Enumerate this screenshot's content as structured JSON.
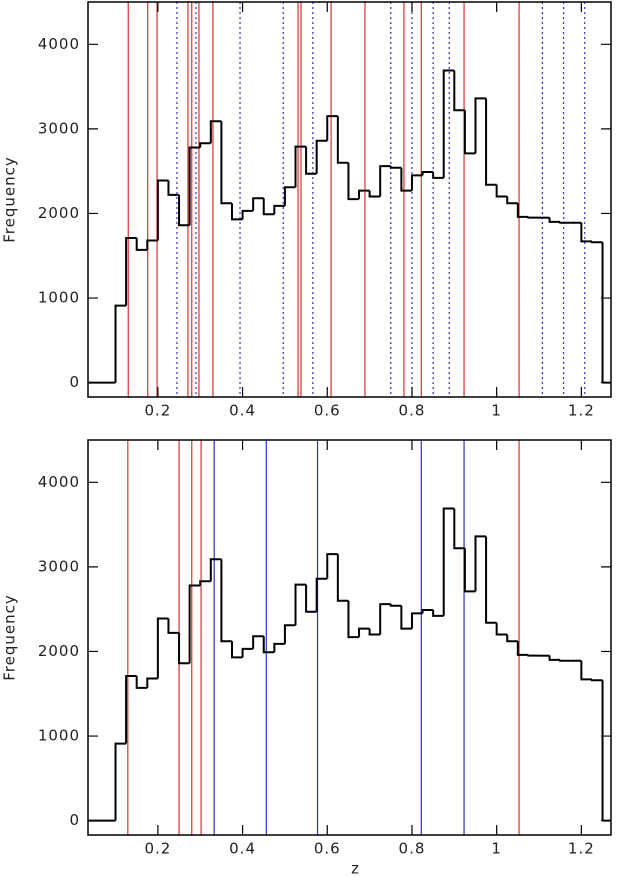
{
  "chart_data": [
    {
      "type": "histogram",
      "ylabel": "Frequency",
      "bins": [
        0.1,
        0.125,
        0.15,
        0.175,
        0.2,
        0.225,
        0.25,
        0.275,
        0.3,
        0.325,
        0.35,
        0.375,
        0.4,
        0.425,
        0.45,
        0.475,
        0.5,
        0.525,
        0.55,
        0.575,
        0.6,
        0.625,
        0.65,
        0.675,
        0.7,
        0.725,
        0.75,
        0.775,
        0.8,
        0.825,
        0.85,
        0.875,
        0.9,
        0.925,
        0.95,
        0.975,
        1.0,
        1.025,
        1.05,
        1.075,
        1.1,
        1.125,
        1.15,
        1.175,
        1.2,
        1.225,
        1.25
      ],
      "values": [
        910,
        1710,
        1570,
        1680,
        2390,
        2220,
        1860,
        2780,
        2830,
        3090,
        2120,
        1930,
        2030,
        2180,
        1990,
        2090,
        2310,
        2790,
        2470,
        2860,
        3150,
        2600,
        2170,
        2270,
        2200,
        2560,
        2540,
        2270,
        2450,
        2490,
        2420,
        3690,
        3220,
        2710,
        3360,
        2340,
        2200,
        2120,
        1960,
        1950,
        1950,
        1900,
        1890,
        1890,
        1670,
        1660
      ],
      "color": "#000000",
      "lines": [
        {
          "color": "#e03030",
          "dash": "solid",
          "values": [
            0.13,
            0.176,
            0.198,
            0.271,
            0.28,
            0.297,
            0.33,
            0.531,
            0.538,
            0.609,
            0.689,
            0.781,
            0.822,
            0.923,
            1.053
          ]
        },
        {
          "color": "#3030c0",
          "dash": "dotted",
          "values": [
            0.245,
            0.29,
            0.394,
            0.496,
            0.566,
            0.75,
            0.8,
            0.85,
            0.888,
            1.108,
            1.158,
            1.208
          ]
        }
      ],
      "xlim": [
        0.035,
        1.27
      ],
      "ylim": [
        -170,
        4500
      ],
      "xticks": [
        0.2,
        0.4,
        0.6,
        0.8,
        1,
        1.2
      ],
      "yticks": [
        0,
        1000,
        2000,
        3000,
        4000
      ]
    },
    {
      "type": "histogram",
      "ylabel": "Frequency",
      "xlabel": "z",
      "bins": [
        0.1,
        0.125,
        0.15,
        0.175,
        0.2,
        0.225,
        0.25,
        0.275,
        0.3,
        0.325,
        0.35,
        0.375,
        0.4,
        0.425,
        0.45,
        0.475,
        0.5,
        0.525,
        0.55,
        0.575,
        0.6,
        0.625,
        0.65,
        0.675,
        0.7,
        0.725,
        0.75,
        0.775,
        0.8,
        0.825,
        0.85,
        0.875,
        0.9,
        0.925,
        0.95,
        0.975,
        1.0,
        1.025,
        1.05,
        1.075,
        1.1,
        1.125,
        1.15,
        1.175,
        1.2,
        1.225,
        1.25
      ],
      "values": [
        910,
        1710,
        1570,
        1680,
        2390,
        2220,
        1860,
        2780,
        2830,
        3090,
        2120,
        1930,
        2030,
        2180,
        1990,
        2090,
        2310,
        2790,
        2470,
        2860,
        3150,
        2600,
        2170,
        2270,
        2200,
        2560,
        2540,
        2270,
        2450,
        2490,
        2420,
        3690,
        3220,
        2710,
        3360,
        2340,
        2200,
        2120,
        1960,
        1950,
        1950,
        1900,
        1890,
        1890,
        1670,
        1660
      ],
      "color": "#000000",
      "lines": [
        {
          "color": "#e03030",
          "dash": "solid",
          "values": [
            0.129,
            0.25,
            0.28,
            0.302,
            1.053
          ]
        },
        {
          "color": "#3030c0",
          "dash": "solid",
          "values": [
            0.333,
            0.456,
            0.577,
            0.822,
            0.923
          ]
        }
      ],
      "xlim": [
        0.035,
        1.27
      ],
      "ylim": [
        -170,
        4500
      ],
      "xticks": [
        0.2,
        0.4,
        0.6,
        0.8,
        1,
        1.2
      ],
      "yticks": [
        0,
        1000,
        2000,
        3000,
        4000
      ]
    }
  ]
}
